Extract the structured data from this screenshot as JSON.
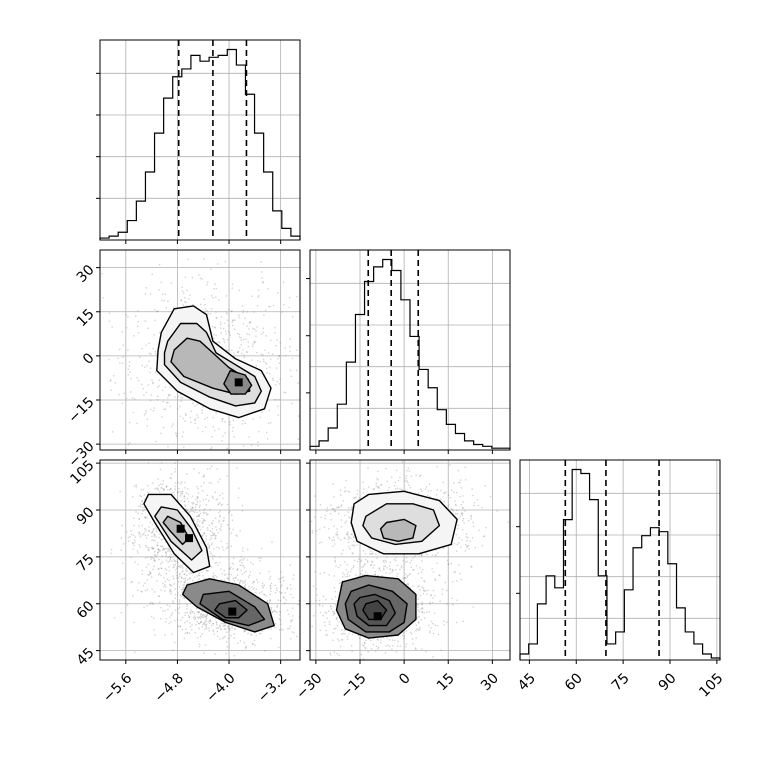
{
  "chart_data": {
    "type": "corner",
    "parameters": 3,
    "grid": true,
    "colors": {
      "line": "#000000",
      "grid": "#b0b0b0",
      "points": "#808080"
    },
    "x_ticks": [
      [
        "−5.6",
        "−4.8",
        "−4.0",
        "−3.2"
      ],
      [
        "−30",
        "−15",
        "0",
        "15",
        "30"
      ],
      [
        "45",
        "60",
        "75",
        "90",
        "105"
      ]
    ],
    "y_ticks": {
      "row2": [
        "30",
        "15",
        "0",
        "−15",
        "−30"
      ],
      "row3": [
        "105",
        "90",
        "75",
        "60",
        "45"
      ]
    },
    "x_tick_values": [
      [
        -5.6,
        -4.8,
        -4.0,
        -3.2
      ],
      [
        -30,
        -15,
        0,
        15,
        30
      ],
      [
        45,
        60,
        75,
        90,
        105
      ]
    ],
    "y_tick_values": {
      "row2": [
        30,
        15,
        0,
        -15,
        -30
      ],
      "row3": [
        105,
        90,
        75,
        60,
        45
      ]
    },
    "ranges": [
      [
        -6.0,
        -2.9
      ],
      [
        -32,
        36
      ],
      [
        42,
        106
      ]
    ],
    "quantiles": [
      [
        -4.78,
        -4.25,
        -3.73
      ],
      [
        -12.2,
        -4.4,
        4.8
      ],
      [
        56.5,
        69.5,
        86.5
      ]
    ],
    "histograms": [
      {
        "bin_edges": [
          -6.0,
          -2.9
        ],
        "counts": [
          1,
          2,
          4,
          10,
          20,
          35,
          55,
          73,
          84,
          88,
          95,
          92,
          94,
          95,
          98,
          90,
          75,
          55,
          35,
          15,
          6,
          2
        ]
      },
      {
        "bin_edges": [
          -32,
          36
        ],
        "counts": [
          2,
          5,
          12,
          25,
          48,
          74,
          92,
          100,
          104,
          98,
          82,
          62,
          44,
          34,
          22,
          14,
          9,
          5,
          3,
          2,
          1,
          1
        ]
      },
      {
        "bin_edges": [
          42,
          106
        ],
        "counts": [
          3,
          8,
          28,
          42,
          36,
          70,
          95,
          93,
          80,
          42,
          8,
          14,
          35,
          56,
          62,
          66,
          64,
          48,
          26,
          14,
          8,
          3,
          1
        ]
      }
    ],
    "joint": [
      {
        "row": 2,
        "col": 1,
        "contours": [
          [
            [
              -5.05,
              8
            ],
            [
              -4.85,
              16
            ],
            [
              -4.55,
              17
            ],
            [
              -4.35,
              14
            ],
            [
              -4.25,
              5
            ],
            [
              -3.9,
              -1
            ],
            [
              -3.5,
              -5
            ],
            [
              -3.35,
              -11
            ],
            [
              -3.45,
              -18
            ],
            [
              -3.85,
              -21
            ],
            [
              -4.3,
              -18
            ],
            [
              -4.8,
              -12
            ],
            [
              -5.12,
              -5
            ],
            [
              -5.1,
              2
            ]
          ],
          [
            [
              -4.95,
              5
            ],
            [
              -4.75,
              11
            ],
            [
              -4.5,
              11
            ],
            [
              -4.35,
              8
            ],
            [
              -4.2,
              1
            ],
            [
              -3.9,
              -3
            ],
            [
              -3.6,
              -7
            ],
            [
              -3.5,
              -12
            ],
            [
              -3.6,
              -16
            ],
            [
              -3.9,
              -17
            ],
            [
              -4.3,
              -14
            ],
            [
              -4.75,
              -9
            ],
            [
              -5.0,
              -3
            ],
            [
              -5.0,
              1
            ]
          ],
          [
            [
              -4.85,
              2
            ],
            [
              -4.65,
              6
            ],
            [
              -4.45,
              5
            ],
            [
              -4.3,
              2
            ],
            [
              -4.0,
              -4
            ],
            [
              -3.7,
              -8
            ],
            [
              -3.68,
              -12
            ],
            [
              -3.9,
              -13
            ],
            [
              -4.25,
              -11
            ],
            [
              -4.7,
              -7
            ],
            [
              -4.9,
              -2
            ]
          ],
          [
            [
              -3.98,
              -5
            ],
            [
              -3.75,
              -6.5
            ],
            [
              -3.65,
              -10
            ],
            [
              -3.75,
              -13
            ],
            [
              -3.97,
              -13
            ],
            [
              -4.08,
              -9.5
            ]
          ]
        ],
        "density_peaks": [
          {
            "x": -3.85,
            "y": -9
          }
        ]
      },
      {
        "row": 3,
        "col": 1,
        "contours": [
          [
            [
              -5.25,
              95
            ],
            [
              -4.9,
              95
            ],
            [
              -4.6,
              88
            ],
            [
              -4.35,
              78
            ],
            [
              -4.3,
              72
            ],
            [
              -4.55,
              70
            ],
            [
              -4.85,
              76
            ],
            [
              -5.15,
              86
            ],
            [
              -5.32,
              92
            ]
          ],
          [
            [
              -5.05,
              91
            ],
            [
              -4.8,
              90
            ],
            [
              -4.58,
              84
            ],
            [
              -4.42,
              77
            ],
            [
              -4.58,
              74
            ],
            [
              -4.9,
              80
            ],
            [
              -5.15,
              88
            ]
          ],
          [
            [
              -4.95,
              88
            ],
            [
              -4.75,
              86
            ],
            [
              -4.62,
              81
            ],
            [
              -4.72,
              79
            ],
            [
              -4.9,
              83
            ],
            [
              -5.02,
              86
            ]
          ],
          [
            [
              -4.65,
              66
            ],
            [
              -4.3,
              68
            ],
            [
              -3.85,
              66
            ],
            [
              -3.4,
              60
            ],
            [
              -3.3,
              53
            ],
            [
              -3.6,
              51
            ],
            [
              -4.05,
              54
            ],
            [
              -4.5,
              59
            ],
            [
              -4.72,
              63
            ]
          ],
          [
            [
              -4.4,
              63
            ],
            [
              -4.0,
              64
            ],
            [
              -3.6,
              59
            ],
            [
              -3.45,
              55
            ],
            [
              -3.7,
              53
            ],
            [
              -4.1,
              55
            ],
            [
              -4.45,
              60
            ]
          ],
          [
            [
              -4.15,
              60
            ],
            [
              -3.9,
              61
            ],
            [
              -3.72,
              58
            ],
            [
              -3.85,
              55.5
            ],
            [
              -4.05,
              55.5
            ],
            [
              -4.22,
              58
            ]
          ]
        ],
        "density_peaks": [
          {
            "x": -4.75,
            "y": 84
          },
          {
            "x": -4.62,
            "y": 81
          },
          {
            "x": -3.95,
            "y": 57.5
          }
        ]
      },
      {
        "row": 3,
        "col": 2,
        "contours": [
          [
            [
              -17,
              92
            ],
            [
              -12,
              95
            ],
            [
              0,
              96
            ],
            [
              12,
              93
            ],
            [
              18,
              87
            ],
            [
              16,
              79
            ],
            [
              5,
              76
            ],
            [
              -7,
              76
            ],
            [
              -16,
              80
            ],
            [
              -18,
              86
            ]
          ],
          [
            [
              -13,
              88
            ],
            [
              -6,
              92
            ],
            [
              3,
              92
            ],
            [
              10,
              90
            ],
            [
              12,
              85
            ],
            [
              6,
              80
            ],
            [
              -3,
              79
            ],
            [
              -11,
              81
            ],
            [
              -14,
              85
            ]
          ],
          [
            [
              -6,
              86
            ],
            [
              0,
              87
            ],
            [
              4,
              85
            ],
            [
              3,
              81
            ],
            [
              -2,
              80
            ],
            [
              -7,
              81
            ],
            [
              -8,
              84
            ]
          ],
          [
            [
              -21,
              67
            ],
            [
              -13,
              69
            ],
            [
              -2,
              68
            ],
            [
              4,
              63
            ],
            [
              4,
              55
            ],
            [
              -2,
              50
            ],
            [
              -12,
              49
            ],
            [
              -20,
              52
            ],
            [
              -23,
              58
            ]
          ],
          [
            [
              -18,
              64
            ],
            [
              -12,
              66
            ],
            [
              -4,
              64
            ],
            [
              1,
              60
            ],
            [
              0,
              54
            ],
            [
              -5,
              51
            ],
            [
              -13,
              51
            ],
            [
              -19,
              55
            ],
            [
              -20,
              60
            ]
          ],
          [
            [
              -15,
              62
            ],
            [
              -10,
              63
            ],
            [
              -5,
              61
            ],
            [
              -3,
              57
            ],
            [
              -6,
              53
            ],
            [
              -12,
              53
            ],
            [
              -16,
              56
            ],
            [
              -17,
              60
            ]
          ],
          [
            [
              -13,
              60
            ],
            [
              -9,
              61
            ],
            [
              -6,
              58
            ],
            [
              -8,
              55
            ],
            [
              -12,
              55
            ],
            [
              -14,
              58
            ]
          ]
        ],
        "density_peaks": [
          {
            "x": -9,
            "y": 56
          }
        ]
      }
    ]
  }
}
